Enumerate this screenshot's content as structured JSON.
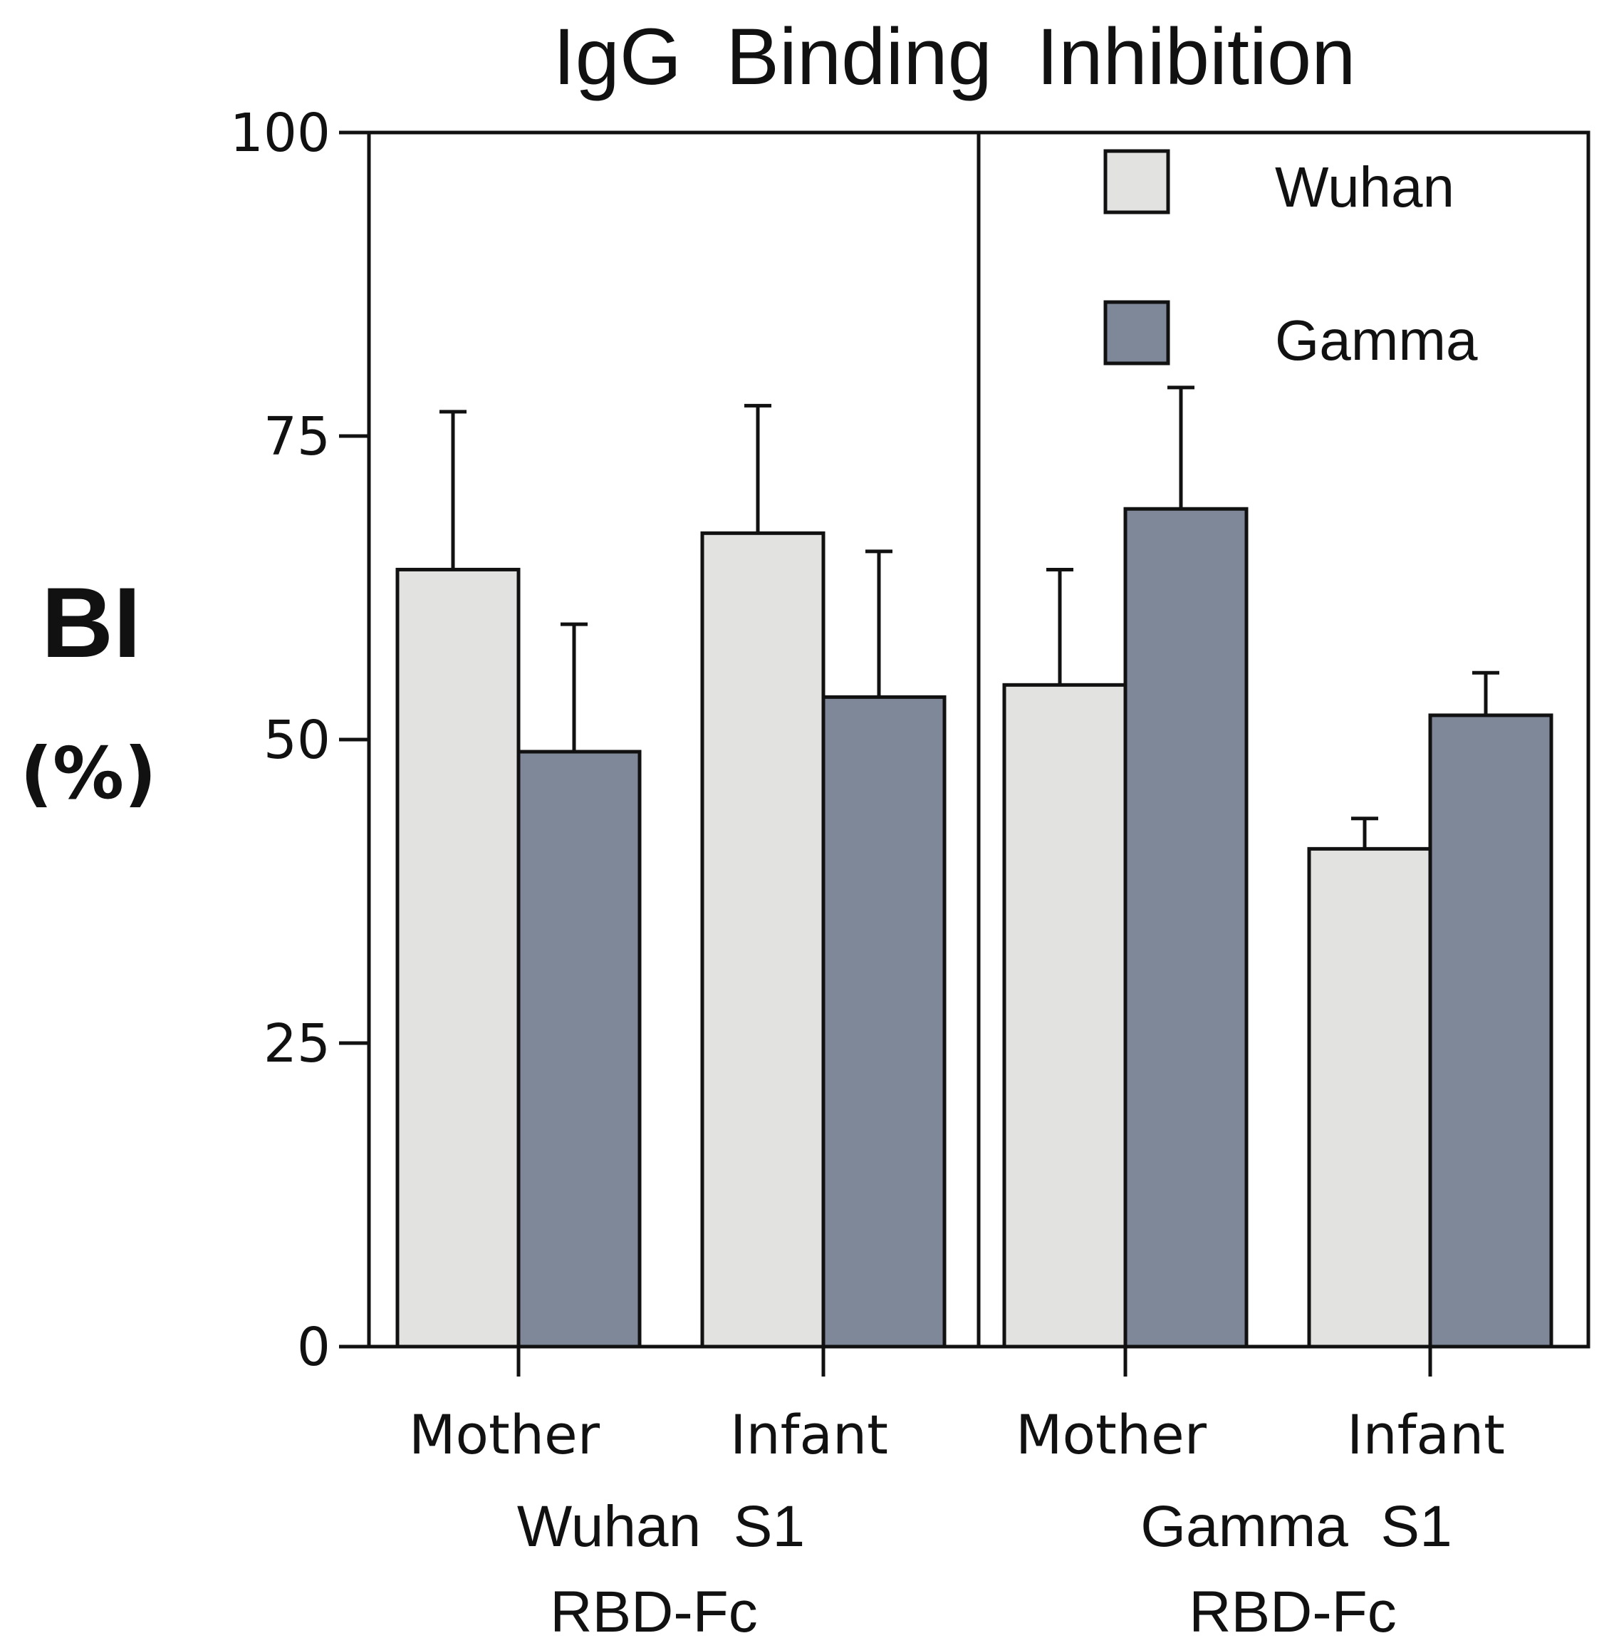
{
  "chart_data": {
    "type": "bar",
    "title": "IgG  Binding  Inhibition",
    "ylabel": "BI",
    "ylabel_unit": "(%)",
    "ylim": [
      0,
      100
    ],
    "yticks": [
      0,
      25,
      50,
      75,
      100
    ],
    "colors": {
      "Wuhan": "#e2e3e1",
      "Gamma": "#7f8898"
    },
    "legend": [
      "Wuhan",
      "Gamma"
    ],
    "legend_position": "top-right",
    "groups": [
      {
        "label_line1": "Wuhan  S1",
        "label_line2": "RBD-Fc",
        "categories": [
          {
            "label": "Mother",
            "bars": [
              {
                "series": "Wuhan",
                "value": 64,
                "error": 13
              },
              {
                "series": "Gamma",
                "value": 49,
                "error": 10.5
              }
            ]
          },
          {
            "label": "Infant",
            "bars": [
              {
                "series": "Wuhan",
                "value": 67,
                "error": 10.5
              },
              {
                "series": "Gamma",
                "value": 53.5,
                "error": 12
              }
            ]
          }
        ]
      },
      {
        "label_line1": "Gamma  S1",
        "label_line2": "RBD-Fc",
        "categories": [
          {
            "label": "Mother",
            "bars": [
              {
                "series": "Wuhan",
                "value": 54.5,
                "error": 9.5
              },
              {
                "series": "Gamma",
                "value": 69,
                "error": 10
              }
            ]
          },
          {
            "label": "Infant",
            "bars": [
              {
                "series": "Wuhan",
                "value": 41,
                "error": 2.5
              },
              {
                "series": "Gamma",
                "value": 52,
                "error": 3.5
              }
            ]
          }
        ]
      }
    ]
  }
}
